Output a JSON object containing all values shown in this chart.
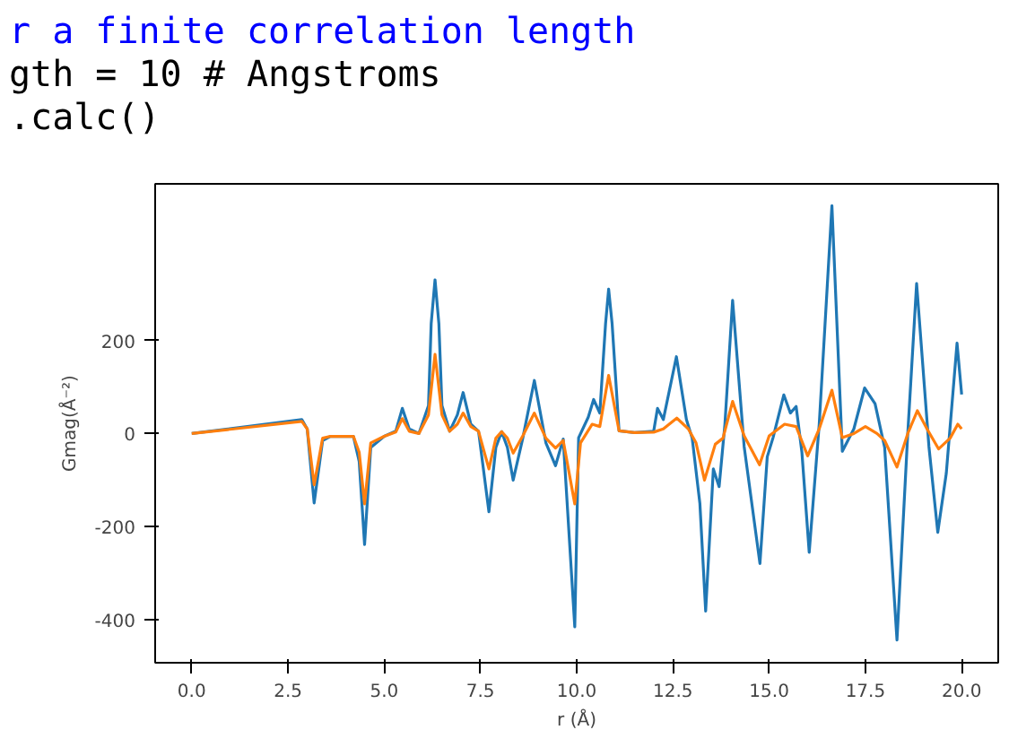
{
  "chart_data": {
    "type": "line",
    "xlabel": "r (Å)",
    "ylabel": "Gmag(Å⁻²)",
    "annotations": [
      "r a finite correlation length",
      "gth = 10 # Angstroms",
      ".calc()"
    ],
    "xlim": [
      -0.95,
      20.95
    ],
    "ylim": [
      -492,
      536
    ],
    "xticks": [
      {
        "value": 0,
        "label": "0.0"
      },
      {
        "value": 2.5,
        "label": "2.5"
      },
      {
        "value": 5,
        "label": "5.0"
      },
      {
        "value": 7.5,
        "label": "7.5"
      },
      {
        "value": 10,
        "label": "10.0"
      },
      {
        "value": 12.5,
        "label": "12.5"
      },
      {
        "value": 15,
        "label": "15.0"
      },
      {
        "value": 17.5,
        "label": "17.5"
      },
      {
        "value": 20,
        "label": "20.0"
      }
    ],
    "yticks": [
      -400,
      -200,
      0,
      200
    ],
    "grid": false,
    "marker": "none",
    "line_style": "solid",
    "series": [
      {
        "color": "#1f77b4",
        "x": [
          0,
          2.86,
          3.0,
          3.18,
          3.4,
          3.6,
          4.2,
          4.35,
          4.49,
          4.65,
          5.0,
          5.3,
          5.47,
          5.65,
          5.9,
          6.15,
          6.22,
          6.32,
          6.42,
          6.5,
          6.7,
          6.9,
          7.05,
          7.25,
          7.45,
          7.72,
          7.9,
          8.05,
          8.2,
          8.35,
          8.6,
          8.9,
          9.2,
          9.45,
          9.65,
          9.95,
          10.05,
          10.3,
          10.44,
          10.6,
          10.75,
          10.83,
          10.92,
          11.1,
          11.5,
          12.0,
          12.1,
          12.25,
          12.59,
          12.85,
          13.0,
          13.2,
          13.35,
          13.55,
          13.7,
          13.85,
          14.05,
          14.35,
          14.76,
          14.95,
          15.1,
          15.38,
          15.55,
          15.7,
          15.85,
          16.04,
          16.3,
          16.63,
          16.9,
          17.2,
          17.48,
          17.75,
          18.0,
          18.32,
          18.6,
          18.83,
          19.15,
          19.38,
          19.6,
          19.88,
          20.0
        ],
        "values": [
          0,
          30,
          10,
          -149,
          -15,
          -6,
          -6,
          -60,
          -238,
          -30,
          -6,
          5,
          54,
          10,
          0,
          60,
          236,
          330,
          236,
          60,
          5,
          40,
          88,
          20,
          5,
          -168,
          -30,
          4,
          -30,
          -100,
          -10,
          114,
          -20,
          -69,
          -12,
          -415,
          -9,
          35,
          73,
          44,
          236,
          310,
          236,
          6,
          2,
          5,
          54,
          30,
          165,
          30,
          -10,
          -150,
          -381,
          -76,
          -114,
          20,
          286,
          -28,
          -279,
          -50,
          -9,
          83,
          44,
          58,
          -40,
          -255,
          20,
          489,
          -38,
          10,
          98,
          64,
          -30,
          -443,
          0,
          322,
          -28,
          -212,
          -86,
          194,
          84
        ]
      },
      {
        "color": "#ff7f0e",
        "x": [
          0,
          2.86,
          3.0,
          3.18,
          3.4,
          3.6,
          4.2,
          4.35,
          4.49,
          4.65,
          5.0,
          5.3,
          5.47,
          5.65,
          5.9,
          6.15,
          6.32,
          6.5,
          6.7,
          6.9,
          7.05,
          7.25,
          7.45,
          7.72,
          7.9,
          8.05,
          8.2,
          8.35,
          8.6,
          8.9,
          9.2,
          9.45,
          9.65,
          9.95,
          10.1,
          10.4,
          10.6,
          10.83,
          11.1,
          11.5,
          12.0,
          12.25,
          12.6,
          12.9,
          13.1,
          13.32,
          13.6,
          13.8,
          14.05,
          14.35,
          14.75,
          15.0,
          15.4,
          15.7,
          16.0,
          16.3,
          16.63,
          16.9,
          17.2,
          17.5,
          17.8,
          18.0,
          18.32,
          18.6,
          18.85,
          19.1,
          19.4,
          19.7,
          19.9,
          20.0
        ],
        "values": [
          0,
          26,
          10,
          -110,
          -10,
          -6,
          -6,
          -40,
          -151,
          -20,
          -6,
          3,
          32,
          5,
          0,
          40,
          170,
          40,
          5,
          20,
          44,
          15,
          5,
          -76,
          -10,
          4,
          -10,
          -42,
          -5,
          44,
          -10,
          -31,
          -15,
          -151,
          -20,
          20,
          15,
          125,
          6,
          2,
          3,
          10,
          33,
          10,
          -20,
          -100,
          -23,
          -10,
          69,
          -5,
          -67,
          -5,
          20,
          15,
          -48,
          10,
          93,
          -9,
          0,
          15,
          0,
          -15,
          -72,
          0,
          49,
          10,
          -33,
          -10,
          20,
          10
        ]
      }
    ]
  }
}
